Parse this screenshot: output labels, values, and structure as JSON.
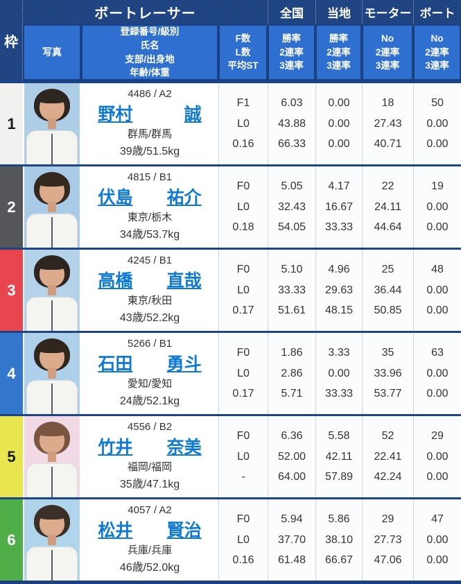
{
  "colors": {
    "header_navy": "#1a4080",
    "header_cell_blue": "#2e6fd0",
    "link_blue": "#0f7ad2",
    "row_separator_blue": "#1c4487",
    "grid_line": "#ccd6e0"
  },
  "header": {
    "frame": "枠",
    "boat_racer": "ボートレーサー",
    "photo": "写真",
    "info_lines": [
      "登録番号/級別",
      "氏名",
      "支部/出身地",
      "年齢/体重"
    ],
    "f_lines": [
      "F数",
      "L数",
      "平均ST"
    ],
    "zenkoku": {
      "label": "全国",
      "lines": [
        "勝率",
        "2連率",
        "3連率"
      ]
    },
    "touchi": {
      "label": "当地",
      "lines": [
        "勝率",
        "2連率",
        "3連率"
      ]
    },
    "motor": {
      "label": "モーター",
      "lines": [
        "No",
        "2連率",
        "3連率"
      ]
    },
    "boat": {
      "label": "ボート",
      "lines": [
        "No",
        "2連率",
        "3連率"
      ]
    }
  },
  "racers": [
    {
      "frame": "1",
      "frame_bg": "#f2f1ef",
      "frame_color": "#1a1a1a",
      "photo_bg": "#aecde6",
      "hair": "#2c2520",
      "reg": "4486 / A2",
      "name_last": "野村",
      "name_first": "誠",
      "branch": "群馬/群馬",
      "age_weight": "39歳/51.5kg",
      "f": "F1",
      "l": "L0",
      "st": "0.16",
      "zenkoku": [
        "6.03",
        "43.88",
        "66.33"
      ],
      "touchi": [
        "0.00",
        "0.00",
        "0.00"
      ],
      "motor": [
        "18",
        "27.43",
        "40.71"
      ],
      "boat": [
        "50",
        "0.00",
        "0.00"
      ]
    },
    {
      "frame": "2",
      "frame_bg": "#54565a",
      "frame_color": "#ffffff",
      "photo_bg": "#a9cbe8",
      "hair": "#33291f",
      "reg": "4815 / B1",
      "name_last": "伏島",
      "name_first": "祐介",
      "branch": "東京/栃木",
      "age_weight": "34歳/53.7kg",
      "f": "F0",
      "l": "L0",
      "st": "0.18",
      "zenkoku": [
        "5.05",
        "32.43",
        "54.05"
      ],
      "touchi": [
        "4.17",
        "16.67",
        "33.33"
      ],
      "motor": [
        "22",
        "24.11",
        "44.64"
      ],
      "boat": [
        "19",
        "0.00",
        "0.00"
      ]
    },
    {
      "frame": "3",
      "frame_bg": "#e9454f",
      "frame_color": "#ffffff",
      "photo_bg": "#b4d2ea",
      "hair": "#2c2520",
      "reg": "4245 / B1",
      "name_last": "高橋",
      "name_first": "直哉",
      "branch": "東京/秋田",
      "age_weight": "43歳/52.2kg",
      "f": "F0",
      "l": "L0",
      "st": "0.17",
      "zenkoku": [
        "5.10",
        "33.33",
        "51.61"
      ],
      "touchi": [
        "4.96",
        "29.63",
        "48.15"
      ],
      "motor": [
        "25",
        "36.44",
        "50.85"
      ],
      "boat": [
        "48",
        "0.00",
        "0.00"
      ]
    },
    {
      "frame": "4",
      "frame_bg": "#3377cc",
      "frame_color": "#ffffff",
      "photo_bg": "#aed0ea",
      "hair": "#2f261d",
      "reg": "5266 / B1",
      "name_last": "石田",
      "name_first": "勇斗",
      "branch": "愛知/愛知",
      "age_weight": "24歳/52.1kg",
      "f": "F0",
      "l": "L0",
      "st": "0.17",
      "zenkoku": [
        "1.86",
        "2.86",
        "5.71"
      ],
      "touchi": [
        "3.33",
        "0.00",
        "33.33"
      ],
      "motor": [
        "35",
        "33.96",
        "53.77"
      ],
      "boat": [
        "63",
        "0.00",
        "0.00"
      ]
    },
    {
      "frame": "5",
      "frame_bg": "#e9e54e",
      "frame_color": "#1a1a1a",
      "photo_bg": "#f2d9e6",
      "hair": "#7a5642",
      "reg": "4556 / B2",
      "name_last": "竹井",
      "name_first": "奈美",
      "branch": "福岡/福岡",
      "age_weight": "35歳/47.1kg",
      "f": "F0",
      "l": "L0",
      "st": "-",
      "zenkoku": [
        "6.36",
        "52.00",
        "64.00"
      ],
      "touchi": [
        "5.58",
        "42.11",
        "57.89"
      ],
      "motor": [
        "52",
        "22.41",
        "42.24"
      ],
      "boat": [
        "29",
        "0.00",
        "0.00"
      ]
    },
    {
      "frame": "6",
      "frame_bg": "#4fae47",
      "frame_color": "#ffffff",
      "photo_bg": "#b0d4ec",
      "hair": "#3a3028",
      "reg": "4057 / A2",
      "name_last": "松井",
      "name_first": "賢治",
      "branch": "兵庫/兵庫",
      "age_weight": "46歳/52.0kg",
      "f": "F0",
      "l": "L0",
      "st": "0.16",
      "zenkoku": [
        "5.94",
        "37.70",
        "61.48"
      ],
      "touchi": [
        "5.86",
        "38.10",
        "66.67"
      ],
      "motor": [
        "29",
        "27.73",
        "47.06"
      ],
      "boat": [
        "47",
        "0.00",
        "0.00"
      ]
    }
  ]
}
